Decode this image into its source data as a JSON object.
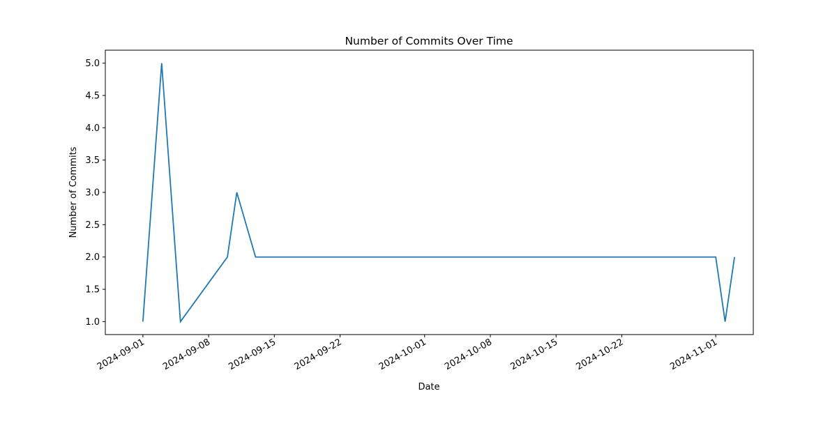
{
  "chart_data": {
    "type": "line",
    "title": "Number of Commits Over Time",
    "xlabel": "Date",
    "ylabel": "Number of Commits",
    "x_is_date": true,
    "xlim": [
      "2024-08-28",
      "2024-11-05"
    ],
    "ylim": [
      0.8,
      5.2
    ],
    "x_ticks": [
      "2024-09-01",
      "2024-09-08",
      "2024-09-15",
      "2024-09-22",
      "2024-10-01",
      "2024-10-08",
      "2024-10-15",
      "2024-10-22",
      "2024-11-01"
    ],
    "y_ticks": [
      "1.0",
      "1.5",
      "2.0",
      "2.5",
      "3.0",
      "3.5",
      "4.0",
      "4.5",
      "5.0"
    ],
    "grid": false,
    "series": [
      {
        "color": "#1f77b4",
        "x": [
          "2024-09-01",
          "2024-09-03",
          "2024-09-05",
          "2024-09-10",
          "2024-09-11",
          "2024-09-13",
          "2024-11-01",
          "2024-11-02",
          "2024-11-03"
        ],
        "y": [
          1,
          5,
          1,
          2,
          3,
          2,
          2,
          1,
          2
        ]
      }
    ]
  }
}
